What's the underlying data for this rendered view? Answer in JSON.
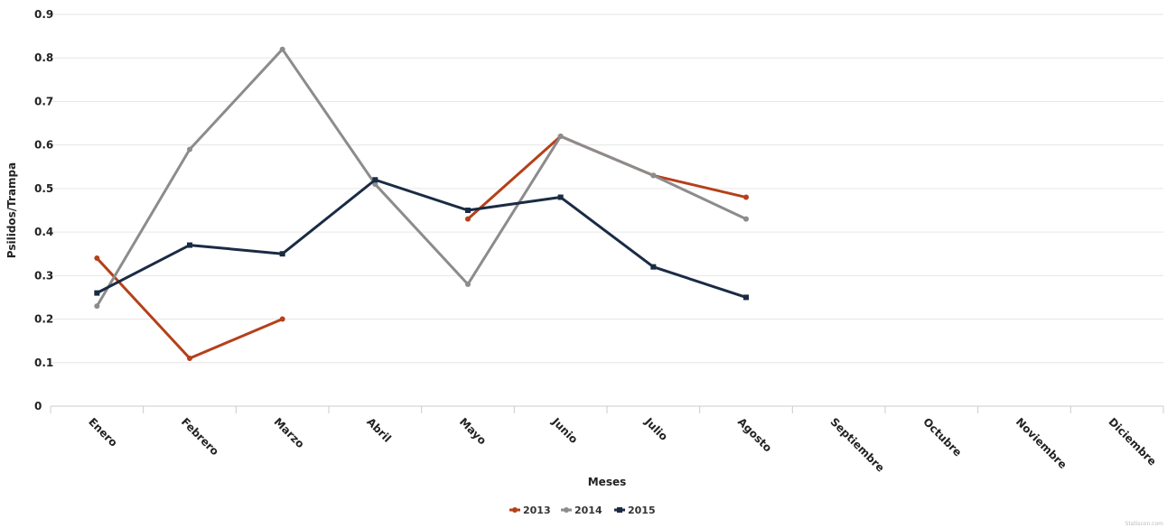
{
  "chart_data": {
    "type": "line",
    "categories": [
      "Enero",
      "Febrero",
      "Marzo",
      "Abril",
      "Mayo",
      "Junio",
      "Julio",
      "Agosto",
      "Septiembre",
      "Octubre",
      "Noviembre",
      "Diciembre"
    ],
    "series": [
      {
        "name": "2013",
        "color": "#b5401a",
        "values": [
          0.34,
          0.11,
          0.2,
          null,
          0.43,
          0.62,
          0.53,
          0.48,
          null,
          null,
          null,
          null
        ]
      },
      {
        "name": "2014",
        "color": "#8c8c8c",
        "values": [
          0.23,
          0.59,
          0.82,
          0.51,
          0.28,
          0.62,
          0.53,
          0.43,
          null,
          null,
          null,
          null
        ]
      },
      {
        "name": "2015",
        "color": "#1a2b44",
        "values": [
          0.26,
          0.37,
          0.35,
          0.52,
          0.45,
          0.48,
          0.32,
          0.25,
          null,
          null,
          null,
          null
        ]
      }
    ],
    "xlabel": "Meses",
    "ylabel": "Psilidos/Trampa",
    "ylim": [
      0,
      0.9
    ],
    "yticks": [
      "0",
      "0.1",
      "0.2",
      "0.3",
      "0.4",
      "0.5",
      "0.6",
      "0.7",
      "0.8",
      "0.9"
    ],
    "grid": true,
    "legend_position": "bottom-center",
    "credit": "Statiscon.com"
  }
}
